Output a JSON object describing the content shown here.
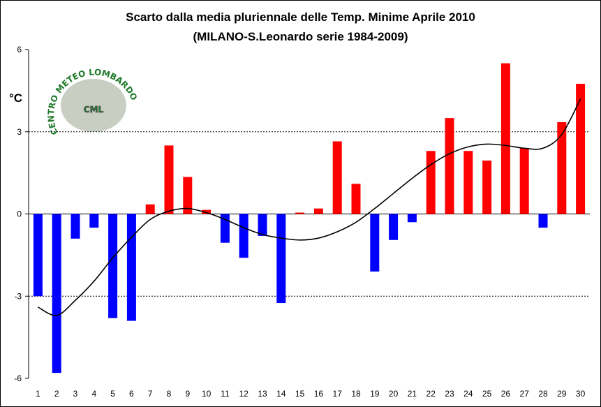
{
  "chart_data": {
    "type": "bar",
    "title": "Scarto dalla media pluriennale delle Temp. Minime Aprile 2010",
    "subtitle": "(MILANO-S.Leonardo serie 1984-2009)",
    "ylabel": "°C",
    "xlabel": "",
    "ylim": [
      -6,
      6
    ],
    "yticks": [
      -6,
      -3,
      0,
      3,
      6
    ],
    "grid_dotted_at": [
      3,
      -3
    ],
    "categories": [
      "1",
      "2",
      "3",
      "4",
      "5",
      "6",
      "7",
      "8",
      "9",
      "10",
      "11",
      "12",
      "13",
      "14",
      "15",
      "16",
      "17",
      "18",
      "19",
      "20",
      "21",
      "22",
      "23",
      "24",
      "25",
      "26",
      "27",
      "28",
      "29",
      "30"
    ],
    "values": [
      -3.0,
      -5.8,
      -0.9,
      -0.5,
      -3.8,
      -3.9,
      0.35,
      2.5,
      1.35,
      0.15,
      -1.05,
      -1.6,
      -0.8,
      -3.25,
      0.05,
      0.2,
      2.65,
      1.1,
      -2.1,
      -0.95,
      -0.3,
      2.3,
      3.5,
      2.3,
      1.95,
      5.5,
      2.4,
      -0.5,
      3.35,
      4.75
    ],
    "positive_color": "#ff0000",
    "negative_color": "#0000ff",
    "trendline": {
      "type": "polynomial",
      "color": "#000000",
      "values": [
        -3.4,
        -3.7,
        -3.15,
        -2.45,
        -1.6,
        -0.85,
        -0.2,
        0.1,
        0.2,
        0.05,
        -0.2,
        -0.5,
        -0.75,
        -0.88,
        -0.95,
        -0.88,
        -0.65,
        -0.3,
        0.2,
        0.75,
        1.3,
        1.8,
        2.2,
        2.45,
        2.55,
        2.5,
        2.4,
        2.4,
        2.9,
        4.2
      ]
    }
  },
  "logo": {
    "initials": "CML",
    "ring_text": "CENTRO METEO LOMBARDO",
    "color": "#1f7a2a"
  }
}
